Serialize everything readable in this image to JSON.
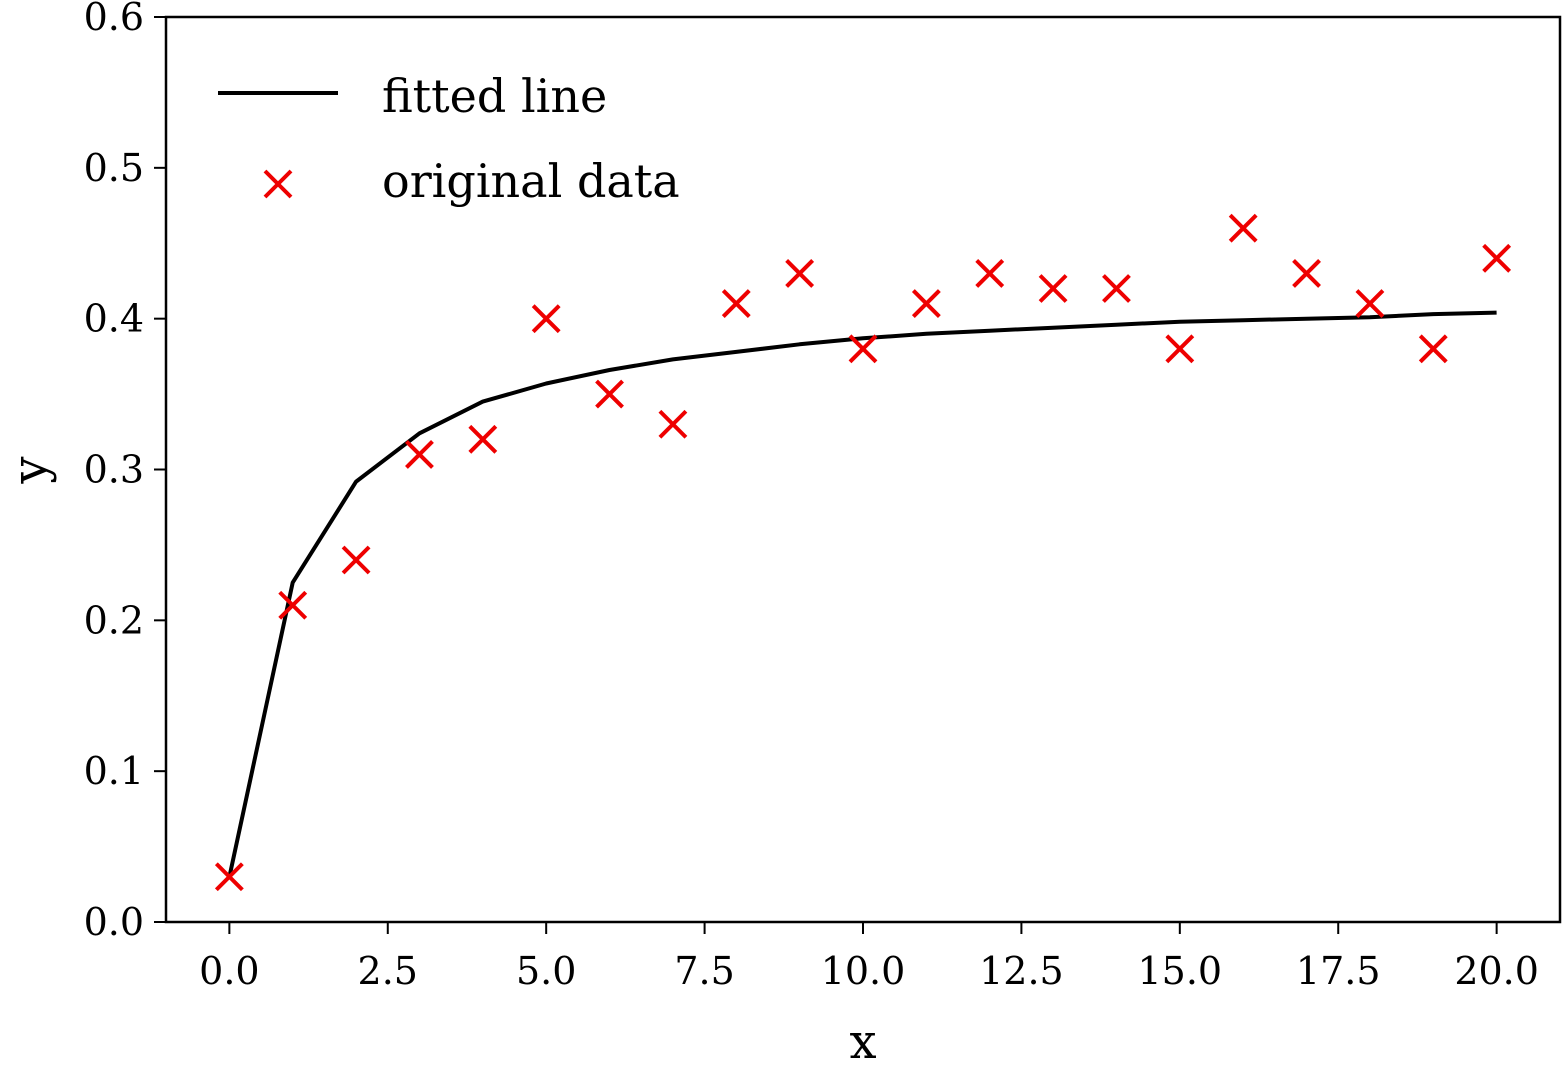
{
  "chart_data": {
    "type": "scatter",
    "title": "",
    "xlabel": "x",
    "ylabel": "y",
    "xlim": [
      -1.0,
      21.0
    ],
    "ylim": [
      0.0,
      0.6
    ],
    "xticks": [
      "0.0",
      "2.5",
      "5.0",
      "7.5",
      "10.0",
      "12.5",
      "15.0",
      "17.5",
      "20.0"
    ],
    "xtick_values": [
      0,
      2.5,
      5,
      7.5,
      10,
      12.5,
      15,
      17.5,
      20
    ],
    "yticks": [
      "0.0",
      "0.1",
      "0.2",
      "0.3",
      "0.4",
      "0.5",
      "0.6"
    ],
    "ytick_values": [
      0,
      0.1,
      0.2,
      0.3,
      0.4,
      0.5,
      0.6
    ],
    "grid": false,
    "legend_position": "top-left",
    "series": [
      {
        "name": "fitted line",
        "kind": "line",
        "color": "#000000",
        "x": [
          0,
          1,
          2,
          3,
          4,
          5,
          6,
          7,
          8,
          9,
          10,
          11,
          12,
          13,
          14,
          15,
          16,
          17,
          18,
          19,
          20
        ],
        "y": [
          0.03,
          0.225,
          0.292,
          0.324,
          0.345,
          0.357,
          0.366,
          0.373,
          0.378,
          0.383,
          0.387,
          0.39,
          0.392,
          0.394,
          0.396,
          0.398,
          0.399,
          0.4,
          0.401,
          0.403,
          0.404
        ]
      },
      {
        "name": "original data",
        "kind": "scatter",
        "marker": "x",
        "color": "#ee0000",
        "x": [
          0,
          1,
          2,
          3,
          4,
          5,
          6,
          7,
          8,
          9,
          10,
          11,
          12,
          13,
          14,
          15,
          16,
          17,
          18,
          19,
          20
        ],
        "y": [
          0.03,
          0.21,
          0.24,
          0.31,
          0.32,
          0.4,
          0.35,
          0.33,
          0.41,
          0.43,
          0.38,
          0.41,
          0.43,
          0.42,
          0.42,
          0.38,
          0.46,
          0.43,
          0.41,
          0.38,
          0.44
        ]
      }
    ]
  }
}
